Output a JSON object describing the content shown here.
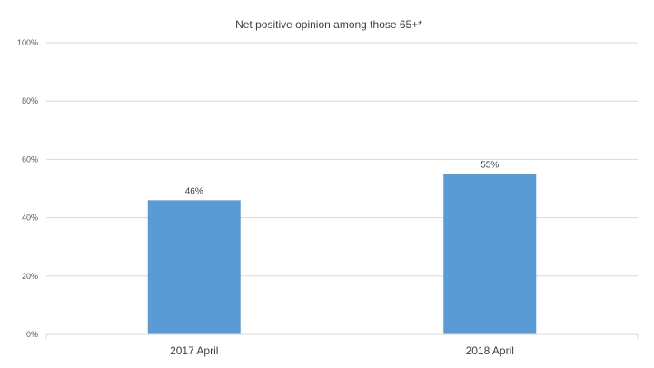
{
  "chart_data": {
    "type": "bar",
    "title": "Net positive opinion among those 65+*",
    "categories": [
      "2017 April",
      "2018 April"
    ],
    "values": [
      46,
      55
    ],
    "data_labels": [
      "46%",
      "55%"
    ],
    "ylim": [
      0,
      100
    ],
    "yticks": [
      0,
      20,
      40,
      60,
      80,
      100
    ],
    "ytick_labels": [
      "0%",
      "20%",
      "40%",
      "60%",
      "80%",
      "100%"
    ],
    "xlabel": "",
    "ylabel": "",
    "grid": true,
    "legend": "none",
    "bar_color": "#5b9bd5"
  }
}
